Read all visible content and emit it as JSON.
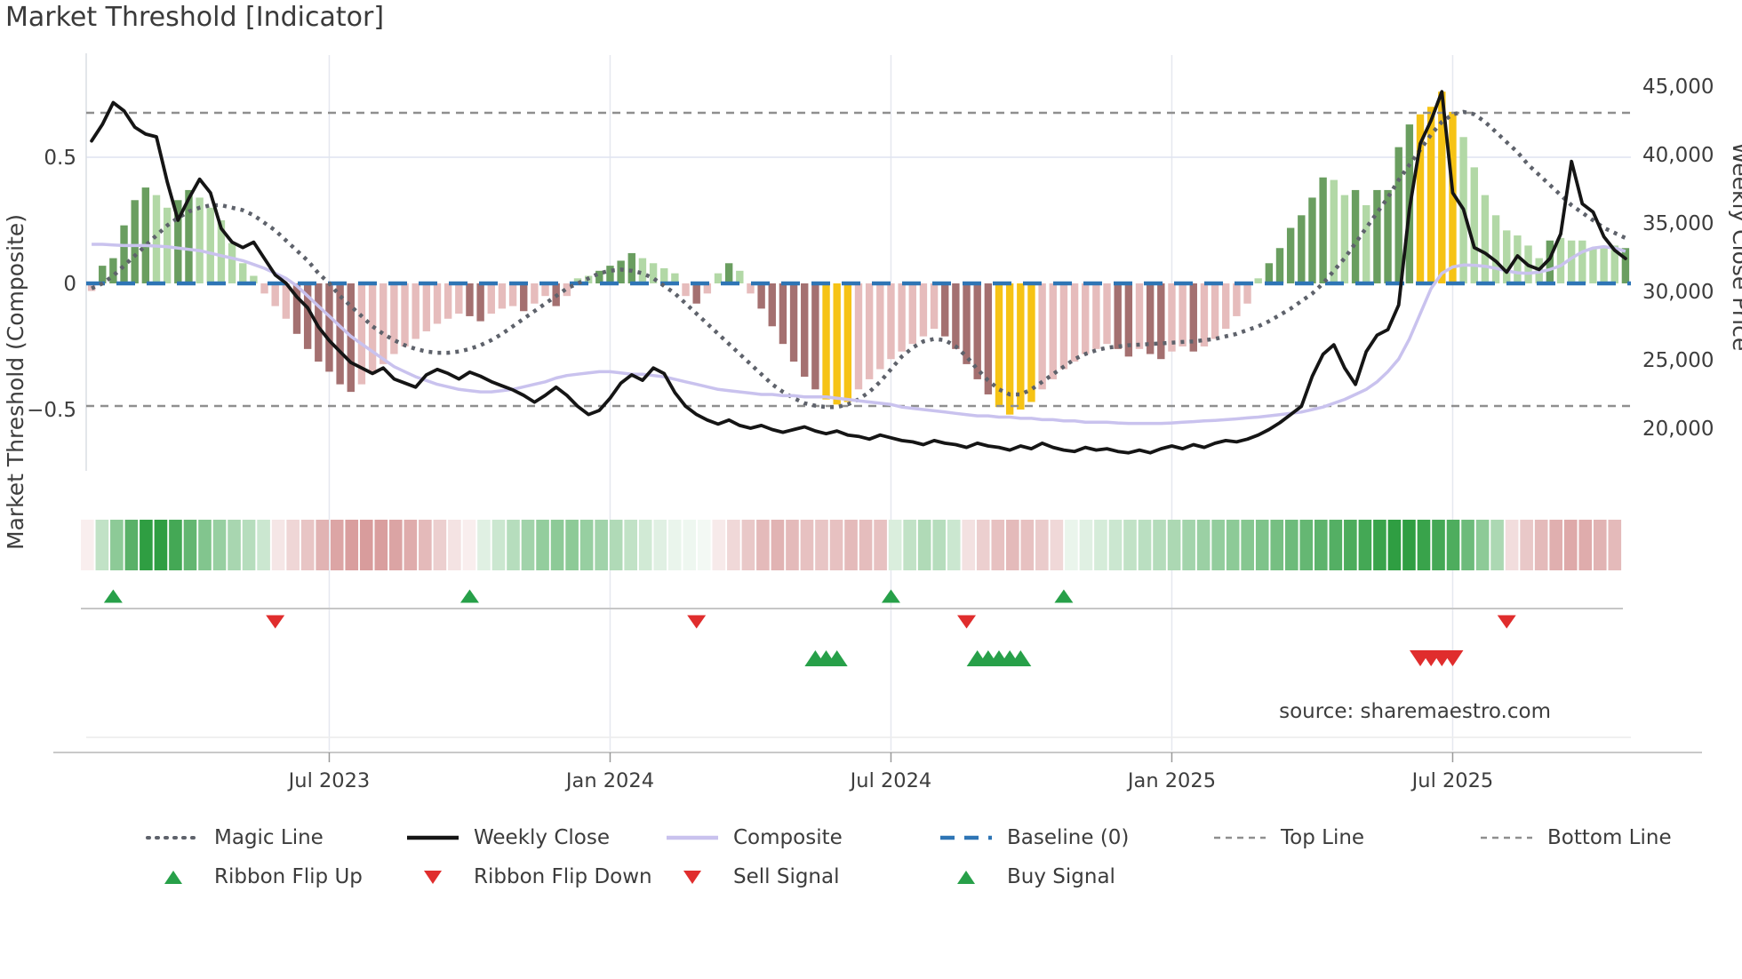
{
  "chart_data": {
    "type": "combo",
    "title": "Market Threshold [Indicator]",
    "source_text": "source: sharemaestro.com",
    "left_axis": {
      "label": "Market Threshold (Composite)",
      "ticks": [
        {
          "v": 0.5,
          "t": "0.5"
        },
        {
          "v": 0,
          "t": "0"
        },
        {
          "v": -0.5,
          "t": "−0.5"
        }
      ]
    },
    "right_axis": {
      "label": "Weekly Close Price",
      "ticks": [
        {
          "v": 45000,
          "t": "45,000"
        },
        {
          "v": 40000,
          "t": "40,000"
        },
        {
          "v": 35000,
          "t": "35,000"
        },
        {
          "v": 30000,
          "t": "30,000"
        },
        {
          "v": 25000,
          "t": "25,000"
        },
        {
          "v": 20000,
          "t": "20,000"
        }
      ]
    },
    "x_axis": {
      "tick_labels": [
        "Jul 2023",
        "Jan 2024",
        "Jul 2024",
        "Jan 2025",
        "Jul 2025"
      ],
      "tick_weeks": [
        22,
        48,
        74,
        100,
        126
      ]
    },
    "reference_lines": {
      "baseline": 0,
      "top_line": 0.676,
      "bottom_line": -0.486
    },
    "bars": {
      "values": [
        -0.03,
        0.07,
        0.1,
        0.23,
        0.33,
        0.38,
        0.35,
        0.3,
        0.33,
        0.37,
        0.34,
        0.3,
        0.25,
        0.16,
        0.08,
        0.03,
        -0.04,
        -0.09,
        -0.14,
        -0.2,
        -0.26,
        -0.31,
        -0.35,
        -0.4,
        -0.43,
        -0.4,
        -0.36,
        -0.32,
        -0.28,
        -0.25,
        -0.22,
        -0.19,
        -0.16,
        -0.14,
        -0.12,
        -0.13,
        -0.15,
        -0.12,
        -0.1,
        -0.09,
        -0.11,
        -0.08,
        -0.05,
        -0.09,
        -0.05,
        0.02,
        0.03,
        0.05,
        0.07,
        0.09,
        0.12,
        0.1,
        0.08,
        0.06,
        0.04,
        -0.05,
        -0.08,
        -0.04,
        0.04,
        0.08,
        0.05,
        -0.04,
        -0.1,
        -0.17,
        -0.24,
        -0.31,
        -0.37,
        -0.42,
        -0.46,
        -0.48,
        -0.47,
        -0.42,
        -0.38,
        -0.34,
        -0.3,
        -0.27,
        -0.24,
        -0.21,
        -0.18,
        -0.21,
        -0.26,
        -0.32,
        -0.38,
        -0.44,
        -0.49,
        -0.52,
        -0.5,
        -0.47,
        -0.42,
        -0.38,
        -0.34,
        -0.31,
        -0.28,
        -0.26,
        -0.24,
        -0.26,
        -0.29,
        -0.26,
        -0.28,
        -0.3,
        -0.27,
        -0.25,
        -0.27,
        -0.25,
        -0.22,
        -0.18,
        -0.13,
        -0.08,
        0.02,
        0.08,
        0.14,
        0.22,
        0.27,
        0.34,
        0.42,
        0.41,
        0.35,
        0.37,
        0.31,
        0.37,
        0.37,
        0.54,
        0.63,
        0.67,
        0.7,
        0.76,
        0.68,
        0.58,
        0.46,
        0.35,
        0.27,
        0.21,
        0.19,
        0.15,
        0.1,
        0.17,
        0.18,
        0.17,
        0.17,
        0.14,
        0.15,
        0.15,
        0.14
      ],
      "colors": "rGGGGGggGGggggggrrrRRRRRRrrrrrrrrrrRRrrrRrrRrggGGGGggggrRrgGgrRRRRRRYYYrrrrrrrrRRRRRYYYYrrrrrrrRRrRRrrRrrrrrgGGGGGGggGgGGGGYYYYggggggggGggggggG"
    },
    "series": [
      {
        "name": "Weekly Close",
        "axis": "right",
        "values": [
          41000,
          42200,
          43800,
          43200,
          42000,
          41500,
          41300,
          38000,
          35200,
          36800,
          38200,
          37200,
          34600,
          33600,
          33200,
          33600,
          32400,
          31200,
          30600,
          29600,
          28800,
          27400,
          26400,
          25600,
          24800,
          24400,
          24000,
          24400,
          23600,
          23300,
          23000,
          23900,
          24300,
          24000,
          23600,
          24100,
          23800,
          23400,
          23100,
          22800,
          22400,
          21900,
          22400,
          23000,
          22400,
          21600,
          21000,
          21300,
          22200,
          23300,
          23900,
          23500,
          24400,
          24000,
          22600,
          21600,
          21000,
          20600,
          20300,
          20600,
          20200,
          20000,
          20200,
          19900,
          19700,
          19900,
          20100,
          19800,
          19600,
          19800,
          19500,
          19400,
          19200,
          19500,
          19300,
          19100,
          19000,
          18800,
          19100,
          18900,
          18800,
          18600,
          18900,
          18700,
          18600,
          18400,
          18700,
          18500,
          18900,
          18600,
          18400,
          18300,
          18600,
          18400,
          18500,
          18300,
          18200,
          18400,
          18200,
          18500,
          18700,
          18500,
          18800,
          18600,
          18900,
          19100,
          19000,
          19200,
          19500,
          19900,
          20400,
          21000,
          21600,
          23800,
          25400,
          26100,
          24400,
          23200,
          25600,
          26800,
          27200,
          29000,
          36000,
          40800,
          42500,
          44600,
          37200,
          36000,
          33200,
          32800,
          32200,
          31400,
          32600,
          31900,
          31600,
          32400,
          34200,
          39500,
          36400,
          35800,
          34000,
          33000,
          32400
        ]
      },
      {
        "name": "Composite",
        "axis": "left",
        "values": [
          0.155,
          0.155,
          0.152,
          0.15,
          0.15,
          0.15,
          0.148,
          0.145,
          0.14,
          0.135,
          0.13,
          0.12,
          0.11,
          0.1,
          0.09,
          0.075,
          0.06,
          0.04,
          0.02,
          -0.01,
          -0.05,
          -0.09,
          -0.13,
          -0.17,
          -0.21,
          -0.24,
          -0.27,
          -0.3,
          -0.33,
          -0.35,
          -0.37,
          -0.385,
          -0.4,
          -0.41,
          -0.42,
          -0.425,
          -0.43,
          -0.43,
          -0.425,
          -0.42,
          -0.41,
          -0.4,
          -0.39,
          -0.375,
          -0.365,
          -0.36,
          -0.355,
          -0.35,
          -0.35,
          -0.355,
          -0.36,
          -0.36,
          -0.365,
          -0.37,
          -0.38,
          -0.39,
          -0.4,
          -0.41,
          -0.42,
          -0.425,
          -0.43,
          -0.435,
          -0.44,
          -0.44,
          -0.445,
          -0.445,
          -0.45,
          -0.45,
          -0.45,
          -0.455,
          -0.46,
          -0.465,
          -0.47,
          -0.475,
          -0.48,
          -0.49,
          -0.495,
          -0.5,
          -0.505,
          -0.51,
          -0.515,
          -0.52,
          -0.525,
          -0.525,
          -0.53,
          -0.53,
          -0.535,
          -0.535,
          -0.54,
          -0.54,
          -0.545,
          -0.545,
          -0.55,
          -0.55,
          -0.55,
          -0.553,
          -0.555,
          -0.555,
          -0.555,
          -0.555,
          -0.553,
          -0.55,
          -0.548,
          -0.545,
          -0.543,
          -0.54,
          -0.537,
          -0.533,
          -0.53,
          -0.525,
          -0.52,
          -0.515,
          -0.51,
          -0.5,
          -0.49,
          -0.475,
          -0.46,
          -0.44,
          -0.42,
          -0.39,
          -0.35,
          -0.3,
          -0.22,
          -0.12,
          -0.02,
          0.04,
          0.065,
          0.073,
          0.072,
          0.068,
          0.06,
          0.05,
          0.042,
          0.04,
          0.045,
          0.055,
          0.07,
          0.1,
          0.125,
          0.14,
          0.145,
          0.14,
          0.127
        ]
      },
      {
        "name": "Magic Line",
        "axis": "left",
        "values": [
          -0.02,
          0.0,
          0.03,
          0.07,
          0.11,
          0.15,
          0.19,
          0.23,
          0.26,
          0.285,
          0.3,
          0.31,
          0.31,
          0.3,
          0.29,
          0.27,
          0.24,
          0.21,
          0.17,
          0.13,
          0.09,
          0.04,
          0.0,
          -0.05,
          -0.09,
          -0.13,
          -0.17,
          -0.2,
          -0.225,
          -0.245,
          -0.26,
          -0.27,
          -0.275,
          -0.275,
          -0.27,
          -0.26,
          -0.245,
          -0.225,
          -0.2,
          -0.17,
          -0.14,
          -0.11,
          -0.08,
          -0.05,
          -0.02,
          0.0,
          0.02,
          0.04,
          0.05,
          0.055,
          0.05,
          0.04,
          0.02,
          -0.01,
          -0.04,
          -0.08,
          -0.12,
          -0.16,
          -0.2,
          -0.24,
          -0.28,
          -0.32,
          -0.36,
          -0.4,
          -0.43,
          -0.455,
          -0.475,
          -0.485,
          -0.49,
          -0.49,
          -0.48,
          -0.46,
          -0.43,
          -0.39,
          -0.34,
          -0.29,
          -0.255,
          -0.23,
          -0.22,
          -0.225,
          -0.25,
          -0.29,
          -0.34,
          -0.385,
          -0.42,
          -0.44,
          -0.44,
          -0.42,
          -0.39,
          -0.36,
          -0.33,
          -0.3,
          -0.28,
          -0.265,
          -0.255,
          -0.25,
          -0.245,
          -0.243,
          -0.24,
          -0.238,
          -0.235,
          -0.232,
          -0.23,
          -0.225,
          -0.22,
          -0.21,
          -0.2,
          -0.185,
          -0.17,
          -0.15,
          -0.125,
          -0.1,
          -0.07,
          -0.04,
          0.0,
          0.05,
          0.1,
          0.16,
          0.22,
          0.28,
          0.34,
          0.41,
          0.47,
          0.53,
          0.59,
          0.64,
          0.67,
          0.68,
          0.67,
          0.64,
          0.6,
          0.56,
          0.52,
          0.47,
          0.43,
          0.39,
          0.35,
          0.31,
          0.28,
          0.25,
          0.22,
          0.2,
          0.18
        ]
      }
    ],
    "ribbon": [
      "r.12",
      "g.30",
      "g.55",
      "g.80",
      "g1",
      "g1",
      "g.90",
      "g.75",
      "g.60",
      "g.50",
      "g.42",
      "g.35",
      "g.25",
      "r.18",
      "r.30",
      "r.42",
      "r.55",
      "r.65",
      "r.70",
      "r.72",
      "r.70",
      "r.66",
      "r.60",
      "r.50",
      "r.35",
      "r.20",
      "r.12",
      "g.15",
      "g.25",
      "g.35",
      "g.45",
      "g.52",
      "g.55",
      "g.55",
      "g.50",
      "g.45",
      "g.38",
      "g.30",
      "g.22",
      "g.15",
      "g.10",
      "g.08",
      "g.06",
      "r.15",
      "r.28",
      "r.40",
      "r.50",
      "r.55",
      "r.50",
      "r.45",
      "r.42",
      "r.45",
      "r.50",
      "r.48",
      "r.45",
      "g.18",
      "g.30",
      "g.38",
      "g.35",
      "g.25",
      "r.22",
      "r.35",
      "r.45",
      "r.50",
      "r.45",
      "r.38",
      "r.28",
      "g.10",
      "g.15",
      "g.20",
      "g.25",
      "g.30",
      "g.33",
      "g.36",
      "g.40",
      "g.44",
      "g.48",
      "g.52",
      "g.55",
      "g.58",
      "g.62",
      "g.66",
      "g.70",
      "g.74",
      "g.78",
      "g.82",
      "g.86",
      "g.90",
      "g.95",
      "g1",
      "g1",
      "g.95",
      "g.90",
      "g.85",
      "g.70",
      "g.55",
      "g.40",
      "r.25",
      "r.40",
      "r.50",
      "r.58",
      "r.62",
      "r.60",
      "r.55",
      "r.50"
    ],
    "markers": {
      "ribbon_flip_up_weeks": [
        2,
        35,
        74,
        90
      ],
      "ribbon_flip_down_weeks": [
        17,
        56,
        81,
        131
      ],
      "buy_signal_weeks": [
        67,
        68,
        69,
        82,
        83,
        84,
        85,
        86
      ],
      "sell_signal_weeks": [
        123,
        124,
        125,
        126
      ]
    },
    "legend": {
      "row1": [
        {
          "label": "Magic Line",
          "marker": "dotted-gray"
        },
        {
          "label": "Weekly Close",
          "marker": "solid-black"
        },
        {
          "label": "Composite",
          "marker": "solid-lavender"
        },
        {
          "label": "Baseline (0)",
          "marker": "dashed-blue"
        },
        {
          "label": "Top Line",
          "marker": "dash-gray"
        },
        {
          "label": "Bottom Line",
          "marker": "dash-gray"
        }
      ],
      "row2": [
        {
          "label": "Ribbon Flip Up",
          "marker": "tri-up"
        },
        {
          "label": "Ribbon Flip Down",
          "marker": "tri-down"
        },
        {
          "label": "Sell Signal",
          "marker": "tri-down"
        },
        {
          "label": "Buy Signal",
          "marker": "tri-up"
        }
      ]
    },
    "colors": {
      "bar_dark_green": "#6a9e60",
      "bar_light_green": "#b2d8a6",
      "bar_dark_red": "#a47070",
      "bar_light_red": "#e6bcbc",
      "bar_yellow": "#f6c315",
      "weekly_close": "#151515",
      "composite": "#c9c2ee",
      "magic_line": "#5e626b",
      "baseline": "#2e75b5",
      "top_bottom_line": "#8f8f8f",
      "flip_up": "#27a049",
      "flip_down": "#e02d2d",
      "ribbon_green": "#2f9e42",
      "ribbon_red": "#c97575",
      "grid": "#e5e8ef",
      "axis_text": "#3d3d3d",
      "source_text": "#909090"
    }
  }
}
